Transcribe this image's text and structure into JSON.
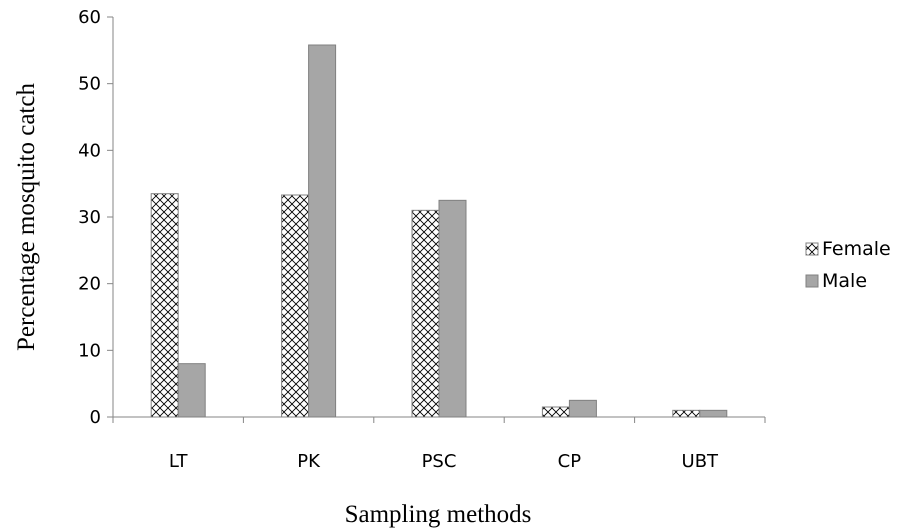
{
  "chart_data": {
    "type": "bar",
    "categories": [
      "LT",
      "PK",
      "PSC",
      "CP",
      "UBT"
    ],
    "series": [
      {
        "name": "Female",
        "values": [
          33.5,
          33.3,
          31.0,
          1.5,
          1.0
        ],
        "pattern": "crosshatch",
        "color": "#ffffff"
      },
      {
        "name": "Male",
        "values": [
          8.0,
          55.8,
          32.5,
          2.5,
          1.0
        ],
        "pattern": "solid",
        "color": "#a6a6a6"
      }
    ],
    "xlabel": "Sampling methods",
    "ylabel": "Percentage mosquito catch",
    "ylim": [
      0,
      60
    ],
    "yticks": [
      0,
      10,
      20,
      30,
      40,
      50,
      60
    ],
    "grid": false,
    "legend_position": "right"
  }
}
